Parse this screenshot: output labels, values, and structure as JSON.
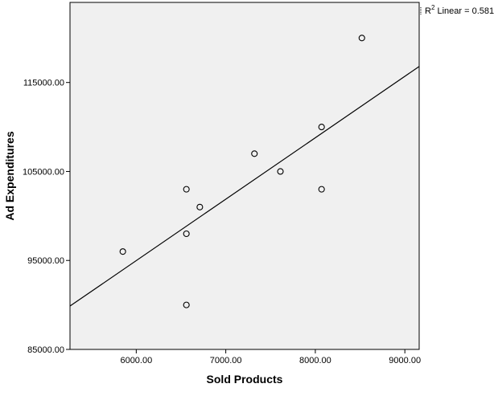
{
  "chart_data": {
    "type": "scatter",
    "x_label": "Sold Products",
    "y_label": "Ad Expenditures",
    "x": [
      5850,
      6560,
      6560,
      6560,
      6710,
      7320,
      7610,
      8070,
      8070,
      8520
    ],
    "series": [
      {
        "color": "#000000",
        "values": [
          96000,
          103000,
          98000,
          90000,
          101000,
          107000,
          105000,
          110000,
          103000,
          120000
        ]
      }
    ],
    "xlim": [
      5260,
      9160
    ],
    "ylim": [
      85000,
      124000
    ],
    "xticks": [
      {
        "value": 6000,
        "label": "6000.00"
      },
      {
        "value": 7000,
        "label": "7000.00"
      },
      {
        "value": 8000,
        "label": "8000.00"
      },
      {
        "value": 9000,
        "label": "9000.00"
      }
    ],
    "yticks": [
      {
        "value": 85000,
        "label": "85000.00"
      },
      {
        "value": 95000,
        "label": "95000.00"
      },
      {
        "value": 105000,
        "label": "105000.00"
      },
      {
        "value": 115000,
        "label": "115000.00"
      }
    ],
    "fit": {
      "x": [
        5260,
        9160
      ],
      "y": [
        89870,
        116800
      ],
      "label": {
        "base": "R",
        "sup": "2",
        "text": " Linear = 0.581"
      }
    },
    "background": "#f0f0f0"
  }
}
